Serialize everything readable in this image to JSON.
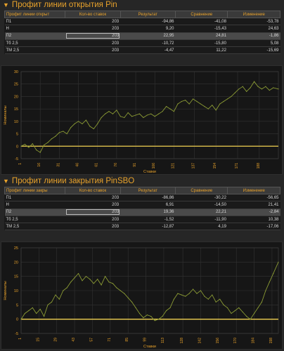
{
  "colors": {
    "accent": "#e8a22b",
    "line": "#8a9a34",
    "zero": "#f0d050"
  },
  "section1": {
    "title": "Профит линии открытия Pin",
    "columns": [
      "Профит линии открыт",
      "Кол-во ставок",
      "Результат",
      "Сравнение",
      "Изменение"
    ],
    "rows": [
      [
        "П1",
        "203",
        "-94,86",
        "-41,08",
        "-53,78"
      ],
      [
        "Н",
        "203",
        "9,20",
        "-15,43",
        "24,63"
      ],
      [
        "П2",
        "203",
        "22,95",
        "24,81",
        "-1,86"
      ],
      [
        "Тб 2,5",
        "203",
        "-10,72",
        "-15,80",
        "5,08"
      ],
      [
        "ТМ 2,5",
        "203",
        "-4,47",
        "11,22",
        "-15,69"
      ]
    ],
    "chart_data": {
      "type": "line",
      "title": "",
      "xlabel": "Ставки",
      "ylabel": "Номиналы",
      "ylim": [
        -5,
        30
      ],
      "yticks": [
        -5,
        0,
        5,
        10,
        15,
        20,
        25,
        30
      ],
      "xlim": [
        1,
        203
      ],
      "xticks": [
        "1",
        "16",
        "31",
        "46",
        "61",
        "76",
        "91",
        "106",
        "121",
        "137",
        "154",
        "171",
        "188"
      ],
      "grid": true,
      "series": [
        {
          "x": [
            1,
            4,
            7,
            10,
            13,
            16,
            19,
            22,
            25,
            28,
            31,
            34,
            37,
            40,
            43,
            46,
            49,
            52,
            55,
            58,
            61,
            64,
            67,
            70,
            73,
            76,
            79,
            82,
            85,
            88,
            91,
            94,
            97,
            100,
            103,
            106,
            109,
            112,
            115,
            118,
            121,
            124,
            127,
            130,
            133,
            136,
            139,
            142,
            145,
            148,
            151,
            154,
            157,
            160,
            163,
            166,
            169,
            172,
            175,
            178,
            181,
            184,
            187,
            190,
            193,
            196,
            199,
            203
          ],
          "values": [
            0,
            0.8,
            -0.5,
            1,
            -1.5,
            -2.5,
            0.5,
            1.5,
            3,
            4,
            5.5,
            6,
            5,
            7.5,
            9,
            10,
            9,
            10.5,
            8,
            7,
            9,
            11.5,
            13,
            14,
            13,
            14.5,
            12,
            11.5,
            13.5,
            12,
            12.5,
            13,
            11.5,
            12.5,
            13,
            12,
            13,
            14,
            16,
            15,
            14,
            17,
            18,
            18.5,
            17,
            19,
            18,
            17,
            16,
            15,
            16.5,
            14.5,
            17,
            18,
            19,
            20,
            21.5,
            23,
            24,
            22,
            23.5,
            26,
            24,
            23,
            24,
            22.5,
            23.5,
            23
          ]
        }
      ]
    }
  },
  "section2": {
    "title": "Профит линии закрытия PinSBO",
    "columns": [
      "Профит линии закры",
      "Кол-во ставок",
      "Результат",
      "Сравнение",
      "Изменение"
    ],
    "rows": [
      [
        "П1",
        "203",
        "-86,86",
        "-30,22",
        "-56,65"
      ],
      [
        "Н",
        "203",
        "6,91",
        "-14,50",
        "21,41"
      ],
      [
        "П2",
        "203",
        "19,36",
        "22,21",
        "-2,84"
      ],
      [
        "Тб 2,5",
        "203",
        "-1,52",
        "-11,90",
        "10,38"
      ],
      [
        "ТМ 2,5",
        "203",
        "-12,87",
        "4,19",
        "-17,06"
      ]
    ],
    "chart_data": {
      "type": "line",
      "title": "",
      "xlabel": "Ставки",
      "ylabel": "Номиналы",
      "ylim": [
        -5,
        25
      ],
      "yticks": [
        -5,
        0,
        5,
        10,
        15,
        20,
        25
      ],
      "xlim": [
        1,
        203
      ],
      "xticks": [
        "1",
        "15",
        "29",
        "43",
        "57",
        "71",
        "85",
        "99",
        "113",
        "128",
        "142",
        "156",
        "170",
        "184",
        "198"
      ],
      "grid": true,
      "series": [
        {
          "x": [
            1,
            4,
            7,
            10,
            13,
            16,
            19,
            22,
            25,
            28,
            31,
            34,
            37,
            40,
            43,
            46,
            49,
            52,
            55,
            58,
            61,
            64,
            67,
            70,
            73,
            76,
            79,
            82,
            85,
            88,
            91,
            94,
            97,
            100,
            103,
            106,
            109,
            112,
            115,
            118,
            121,
            124,
            127,
            130,
            133,
            136,
            139,
            142,
            145,
            148,
            151,
            154,
            157,
            160,
            163,
            166,
            169,
            172,
            175,
            178,
            181,
            184,
            187,
            190,
            193,
            196,
            199,
            203
          ],
          "values": [
            0,
            2,
            3,
            4,
            2,
            3.5,
            1,
            5,
            6,
            8.5,
            7,
            10,
            11,
            13,
            14.5,
            16,
            13.5,
            15,
            14,
            12.5,
            14,
            12,
            15,
            13,
            12.5,
            11,
            10,
            9,
            7.5,
            6,
            4,
            2,
            0.5,
            1.5,
            1,
            -0.5,
            0,
            1,
            3,
            4,
            7,
            9,
            8.5,
            8,
            9,
            10.5,
            9,
            10,
            8,
            7,
            8.5,
            6,
            7,
            5,
            4,
            2,
            3,
            4,
            2.5,
            1,
            0,
            2,
            4,
            6,
            10,
            13,
            16,
            20
          ]
        }
      ]
    }
  }
}
